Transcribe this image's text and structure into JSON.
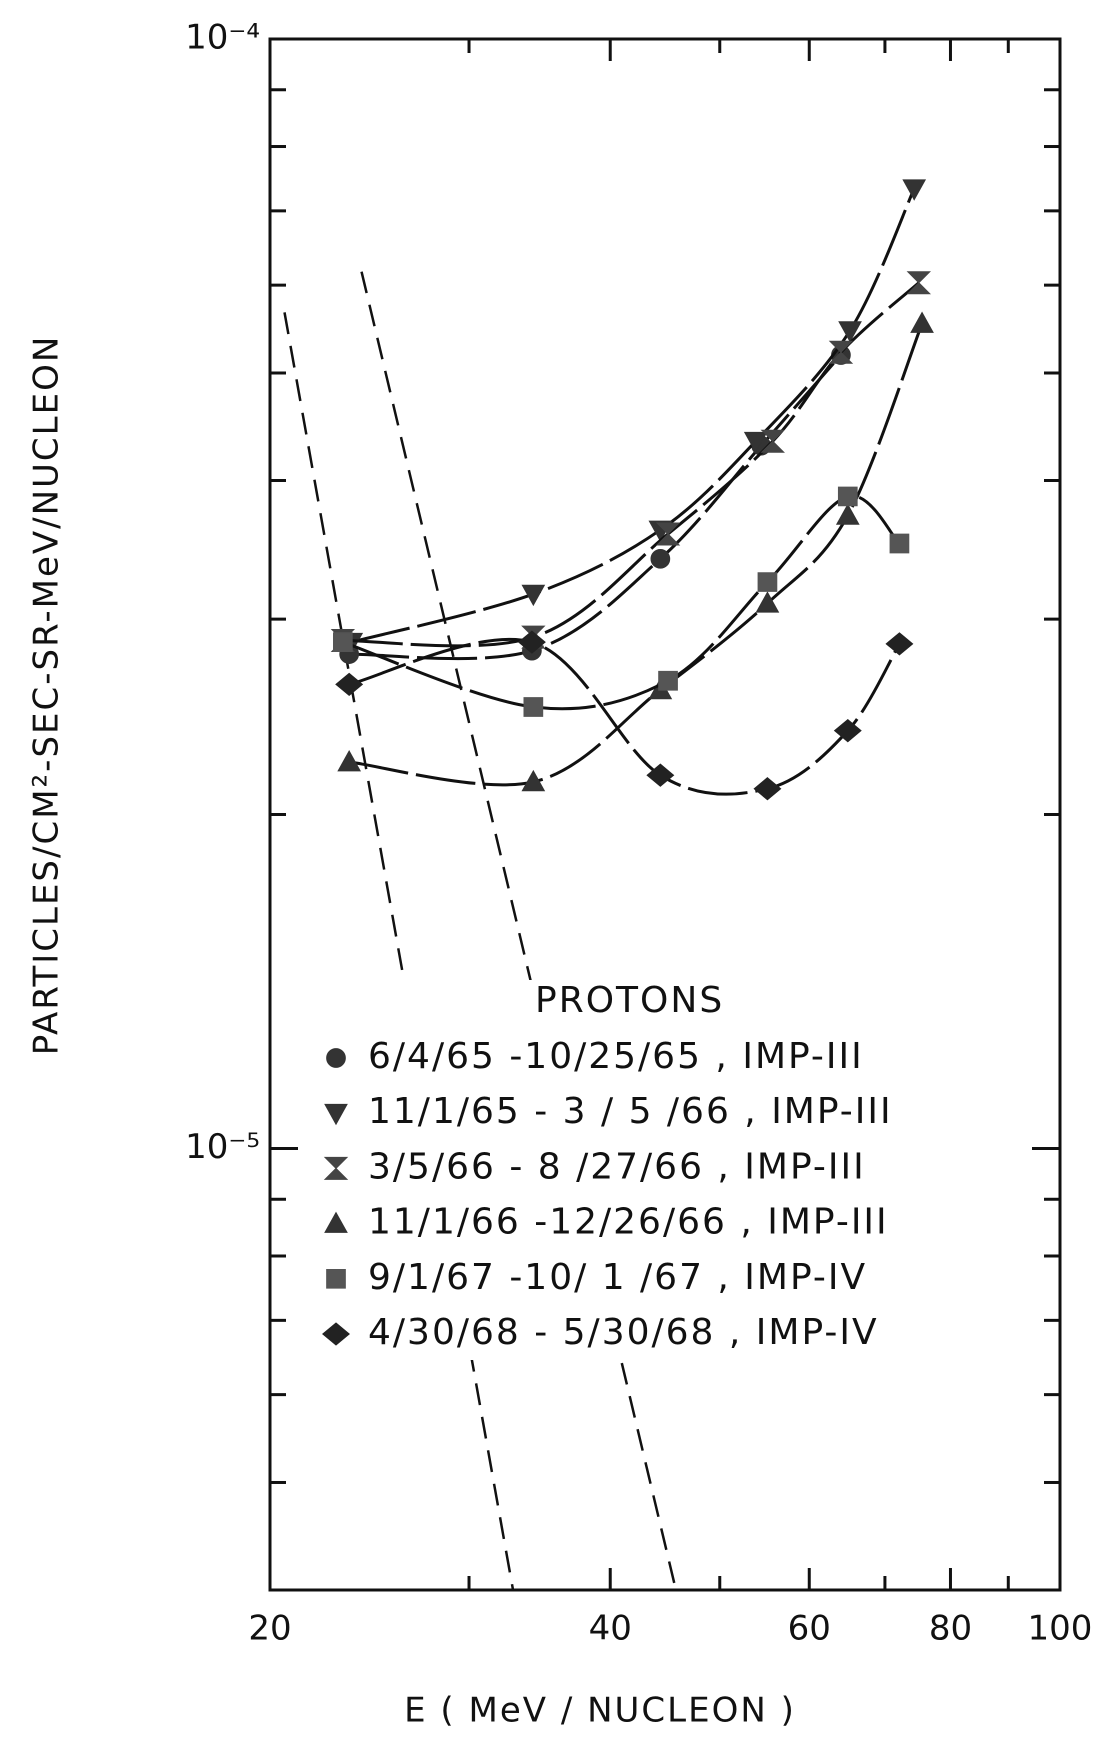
{
  "chart_data": {
    "type": "line",
    "xlabel": "E ( MeV / NUCLEON )",
    "ylabel": "PARTICLES/CM²-SEC-SR-MeV/NUCLEON",
    "xscale": "log",
    "yscale": "log",
    "xlim": [
      20,
      100
    ],
    "ylim": [
      4e-06,
      0.0001
    ],
    "xticks": [
      20,
      40,
      60,
      80,
      100
    ],
    "xticks_minor": [
      30,
      50,
      70,
      90
    ],
    "yticks": [
      {
        "value": 1e-05,
        "label": "10⁻⁵"
      },
      {
        "value": 0.0001,
        "label": "10⁻⁴"
      }
    ],
    "yticks_minor": [
      5e-06,
      6e-06,
      7e-06,
      8e-06,
      9e-06,
      2e-05,
      3e-05,
      4e-05,
      5e-05,
      6e-05,
      7e-05,
      8e-05,
      9e-05
    ],
    "legend_title": "PROTONS",
    "series": [
      {
        "name": "6/4/65 -10/25/65 , IMP-III",
        "marker": "circle",
        "color": "#333333",
        "x": [
          23.5,
          34.1,
          44.3,
          54.4,
          64.0
        ],
        "values": [
          2.79e-05,
          2.81e-05,
          3.4e-05,
          4.3e-05,
          5.19e-05
        ]
      },
      {
        "name": "11/1/65 - 3 / 5 /66 , IMP-III",
        "marker": "triangle-down",
        "color": "#333333",
        "x": [
          23.6,
          34.2,
          44.3,
          53.8,
          65.2,
          74.3
        ],
        "values": [
          2.86e-05,
          3.16e-05,
          3.61e-05,
          4.34e-05,
          5.46e-05,
          7.33e-05
        ]
      },
      {
        "name": "3/5/66 - 8 /27/66 , IMP-III",
        "marker": "hourglass",
        "color": "#444444",
        "x": [
          23.2,
          34.2,
          45.0,
          55.7,
          64.0,
          75.0
        ],
        "values": [
          2.87e-05,
          2.89e-05,
          3.58e-05,
          4.34e-05,
          5.22e-05,
          6.03e-05
        ]
      },
      {
        "name": "11/1/66 -12/26/66 , IMP-III",
        "marker": "triangle-up",
        "color": "#333333",
        "x": [
          23.5,
          34.2,
          44.3,
          55.1,
          64.9,
          75.5
        ],
        "values": [
          2.23e-05,
          2.14e-05,
          2.59e-05,
          3.1e-05,
          3.72e-05,
          5.54e-05
        ]
      },
      {
        "name": "9/1/67 -10/ 1 /67 , IMP-IV",
        "marker": "square",
        "color": "#555555",
        "x": [
          23.2,
          34.2,
          45.0,
          55.1,
          64.9,
          72.1
        ],
        "values": [
          2.86e-05,
          2.5e-05,
          2.64e-05,
          3.24e-05,
          3.87e-05,
          3.51e-05
        ]
      },
      {
        "name": "4/30/68 - 5/30/68 , IMP-IV",
        "marker": "diamond",
        "color": "#222222",
        "x": [
          23.5,
          34.1,
          44.3,
          55.1,
          64.9,
          72.1
        ],
        "values": [
          2.62e-05,
          2.86e-05,
          2.17e-05,
          2.11e-05,
          2.38e-05,
          2.85e-05
        ]
      }
    ],
    "proton_curves": [
      {
        "x": [
          20.6,
          32.8
        ],
        "values": [
          5.67e-05,
          4.01e-06
        ]
      },
      {
        "x": [
          24.1,
          45.7
        ],
        "values": [
          6.17e-05,
          4.01e-06
        ]
      }
    ]
  }
}
